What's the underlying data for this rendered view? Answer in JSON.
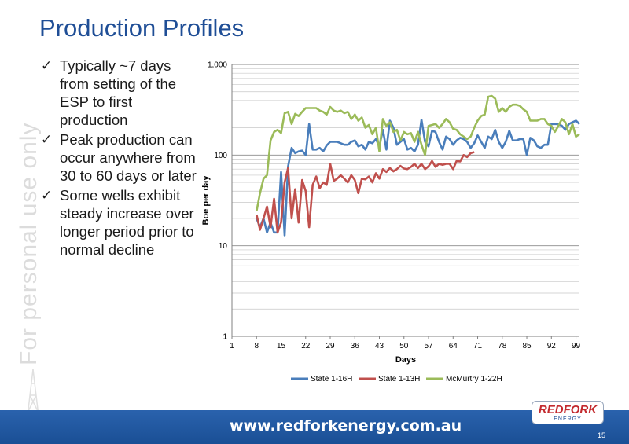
{
  "slide": {
    "title": "Production Profiles",
    "watermark": "For personal use only",
    "bullets": [
      "Typically ~7 days from setting of the ESP to first production",
      "Peak production can occur anywhere from 30 to 60 days or later",
      "Some wells exhibit steady increase over longer period prior to normal decline"
    ],
    "check_glyph": "✓",
    "footer_url": "www.redforkenergy.com.au",
    "page_number": "15",
    "logo_main": "REDFORK",
    "logo_sub": "ENERGY",
    "colors": {
      "title": "#1f4e96",
      "footer": "#1f58a3",
      "logo_red": "#c32a2e"
    }
  },
  "chart_data": {
    "type": "line",
    "title": "",
    "xlabel": "Days",
    "ylabel": "Boe per day",
    "y_scale": "log",
    "ylim": [
      1,
      1000
    ],
    "xlim": [
      1,
      100
    ],
    "x_ticks": [
      1,
      8,
      15,
      22,
      29,
      36,
      43,
      50,
      57,
      64,
      71,
      78,
      85,
      92,
      99
    ],
    "y_ticks": [
      1,
      10,
      100,
      1000
    ],
    "y_tick_labels": [
      "1",
      "10",
      "100",
      "1,000"
    ],
    "grid": true,
    "legend": "bottom",
    "series": [
      {
        "name": "State 1-16H",
        "color": "#4a7ebb",
        "x": [
          8,
          9,
          10,
          11,
          12,
          13,
          14,
          15,
          16,
          17,
          18,
          19,
          20,
          21,
          22,
          23,
          24,
          25,
          26,
          27,
          28,
          29,
          30,
          31,
          32,
          33,
          34,
          35,
          36,
          37,
          38,
          39,
          40,
          41,
          42,
          43,
          44,
          45,
          46,
          47,
          48,
          49,
          50,
          51,
          52,
          53,
          54,
          55,
          56,
          57,
          58,
          59,
          60,
          61,
          62,
          63,
          64,
          65,
          66,
          67,
          68,
          69,
          70,
          71,
          72,
          73,
          74,
          75,
          76,
          77,
          78,
          79,
          80,
          81,
          82,
          83,
          84,
          85,
          86,
          87,
          88,
          89,
          90,
          91,
          92,
          93,
          94,
          95,
          96,
          97,
          98,
          99,
          100
        ],
        "values": [
          20,
          16,
          20,
          14,
          18,
          14,
          14,
          65,
          13,
          75,
          120,
          105,
          110,
          112,
          100,
          220,
          115,
          115,
          120,
          110,
          128,
          140,
          140,
          140,
          135,
          130,
          130,
          140,
          145,
          125,
          130,
          115,
          140,
          135,
          150,
          125,
          190,
          115,
          240,
          200,
          130,
          140,
          150,
          115,
          120,
          110,
          130,
          245,
          140,
          125,
          185,
          180,
          140,
          115,
          160,
          150,
          130,
          145,
          155,
          150,
          140,
          120,
          135,
          165,
          140,
          120,
          160,
          150,
          190,
          140,
          120,
          140,
          185,
          145,
          145,
          150,
          150,
          100,
          155,
          145,
          125,
          120,
          130,
          130,
          220,
          220,
          220,
          210,
          190,
          220,
          230,
          240,
          220
        ]
      },
      {
        "name": "State 1-13H",
        "color": "#c0504d",
        "x": [
          8,
          9,
          10,
          11,
          12,
          13,
          14,
          15,
          16,
          17,
          18,
          19,
          20,
          21,
          22,
          23,
          24,
          25,
          26,
          27,
          28,
          29,
          30,
          31,
          32,
          33,
          34,
          35,
          36,
          37,
          38,
          39,
          40,
          41,
          42,
          43,
          44,
          45,
          46,
          47,
          48,
          49,
          50,
          51,
          52,
          53,
          54,
          55,
          56,
          57,
          58,
          59,
          60,
          61,
          62,
          63,
          64,
          65,
          66,
          67,
          68,
          69,
          70
        ],
        "values": [
          22,
          15,
          20,
          27,
          16,
          33,
          14,
          18,
          50,
          72,
          20,
          42,
          18,
          53,
          40,
          16,
          47,
          58,
          43,
          50,
          47,
          80,
          52,
          55,
          60,
          55,
          50,
          60,
          53,
          38,
          55,
          54,
          58,
          50,
          63,
          55,
          70,
          65,
          72,
          66,
          70,
          76,
          71,
          70,
          74,
          80,
          72,
          80,
          70,
          75,
          86,
          74,
          80,
          78,
          80,
          80,
          70,
          86,
          85,
          100,
          95,
          105,
          108
        ]
      },
      {
        "name": "McMurtry 1-22H",
        "color": "#9bbb59",
        "x": [
          8,
          9,
          10,
          11,
          12,
          13,
          14,
          15,
          16,
          17,
          18,
          19,
          20,
          21,
          22,
          23,
          24,
          25,
          26,
          27,
          28,
          29,
          30,
          31,
          32,
          33,
          34,
          35,
          36,
          37,
          38,
          39,
          40,
          41,
          42,
          43,
          44,
          45,
          46,
          47,
          48,
          49,
          50,
          51,
          52,
          53,
          54,
          55,
          56,
          57,
          58,
          59,
          60,
          61,
          62,
          63,
          64,
          65,
          66,
          67,
          68,
          69,
          70,
          71,
          72,
          73,
          74,
          75,
          76,
          77,
          78,
          79,
          80,
          81,
          82,
          83,
          84,
          85,
          86,
          87,
          88,
          89,
          90,
          91,
          92,
          93,
          94,
          95,
          96,
          97,
          98,
          99,
          100
        ],
        "values": [
          24,
          38,
          55,
          60,
          145,
          180,
          190,
          175,
          290,
          300,
          220,
          285,
          270,
          300,
          330,
          330,
          330,
          330,
          310,
          300,
          280,
          340,
          310,
          300,
          310,
          290,
          300,
          250,
          280,
          240,
          260,
          200,
          215,
          170,
          200,
          110,
          250,
          210,
          230,
          180,
          190,
          145,
          180,
          170,
          175,
          140,
          180,
          130,
          100,
          210,
          215,
          220,
          200,
          220,
          250,
          230,
          195,
          190,
          170,
          160,
          150,
          160,
          200,
          240,
          270,
          280,
          440,
          450,
          420,
          300,
          330,
          300,
          340,
          360,
          360,
          350,
          320,
          300,
          240,
          240,
          240,
          250,
          250,
          220,
          210,
          180,
          210,
          250,
          230,
          170,
          220,
          160,
          170
        ]
      }
    ]
  }
}
